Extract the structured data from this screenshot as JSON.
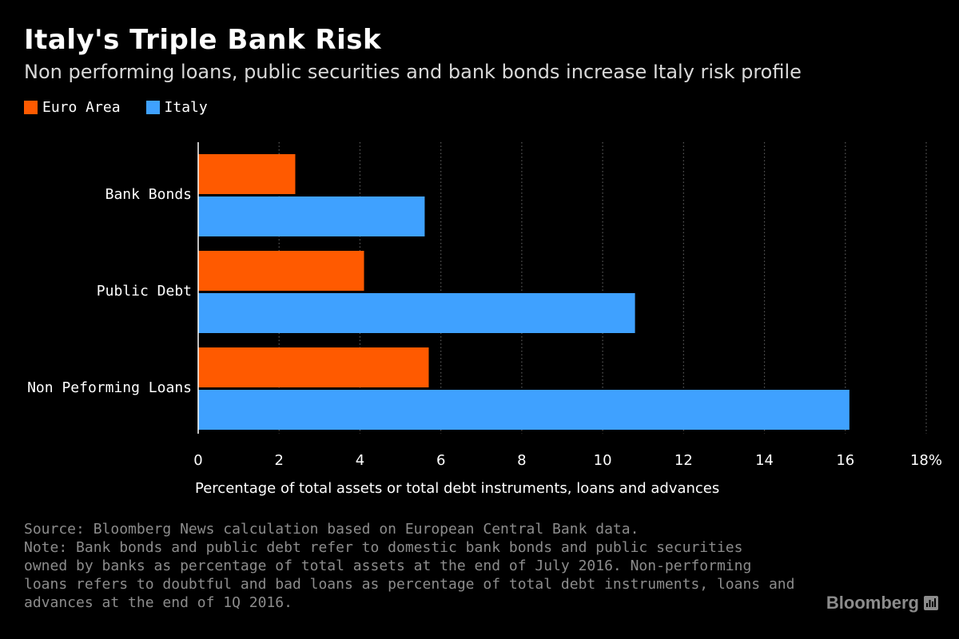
{
  "title": "Italy's Triple Bank Risk",
  "subtitle": "Non performing loans, public securities and bank bonds increase Italy risk profile",
  "colors": {
    "background": "#000000",
    "euro_area": "#ff5a00",
    "italy": "#3fa1ff",
    "grid": "#5a5a5a",
    "muted_text": "#8c8c8c"
  },
  "chart_data": {
    "type": "bar",
    "orientation": "horizontal",
    "categories": [
      "Bank Bonds",
      "Public Debt",
      "Non Peforming Loans"
    ],
    "series": [
      {
        "name": "Euro Area",
        "values": [
          2.4,
          4.1,
          5.7
        ]
      },
      {
        "name": "Italy",
        "values": [
          5.6,
          10.8,
          16.1
        ]
      }
    ],
    "xlabel": "Percentage of total assets or total debt instruments, loans and advances",
    "xlim": [
      0,
      18
    ],
    "x_ticks": [
      0,
      2,
      4,
      6,
      8,
      10,
      12,
      14,
      16,
      18
    ],
    "x_tick_labels": [
      "0",
      "2",
      "4",
      "6",
      "8",
      "10",
      "12",
      "14",
      "16",
      "18%"
    ],
    "grid": "vertical dotted",
    "legend": "top-left"
  },
  "footnotes": {
    "source": "Source: Bloomberg News calculation based on European Central Bank data.",
    "note_lines": [
      "Note: Bank bonds and public debt refer to domestic bank bonds and public securities",
      "owned by banks as percentage of total assets at the end of July 2016. Non-performing",
      "loans refers to doubtful and bad loans as percentage of total debt instruments, loans and",
      "advances at the end of 1Q 2016."
    ]
  },
  "brand": {
    "name": "Bloomberg",
    "icon": "bloomberg-chart-icon"
  }
}
